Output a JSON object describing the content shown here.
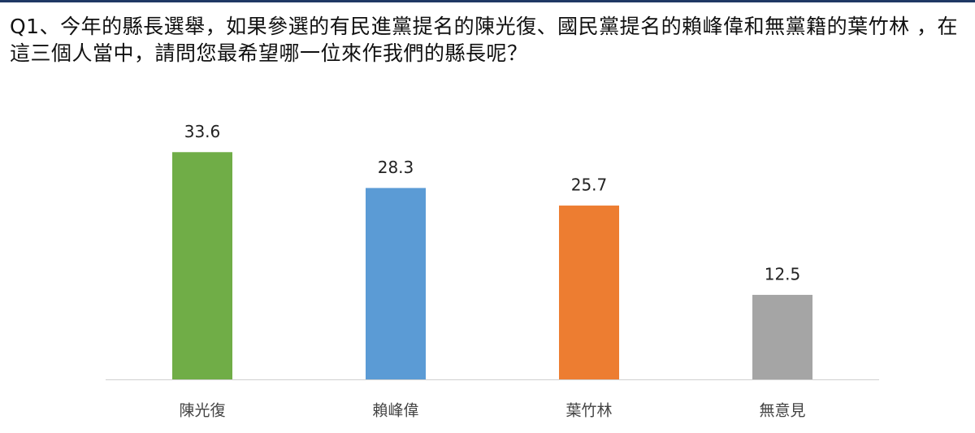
{
  "chart_data": {
    "type": "bar",
    "title": "Q1、今年的縣長選舉，如果參選的有民進黨提名的陳光復、國民黨提名的賴峰偉和無黨籍的葉竹林 ，在這三個人當中，請問您最希望哪一位來作我們的縣長呢？",
    "categories": [
      "陳光復",
      "賴峰偉",
      "葉竹林",
      "無意見"
    ],
    "values": [
      33.6,
      28.3,
      25.7,
      12.5
    ],
    "colors": [
      "#70ad47",
      "#5b9bd5",
      "#ed7d31",
      "#a5a5a5"
    ],
    "ylim": [
      0,
      40
    ],
    "grid": false
  }
}
